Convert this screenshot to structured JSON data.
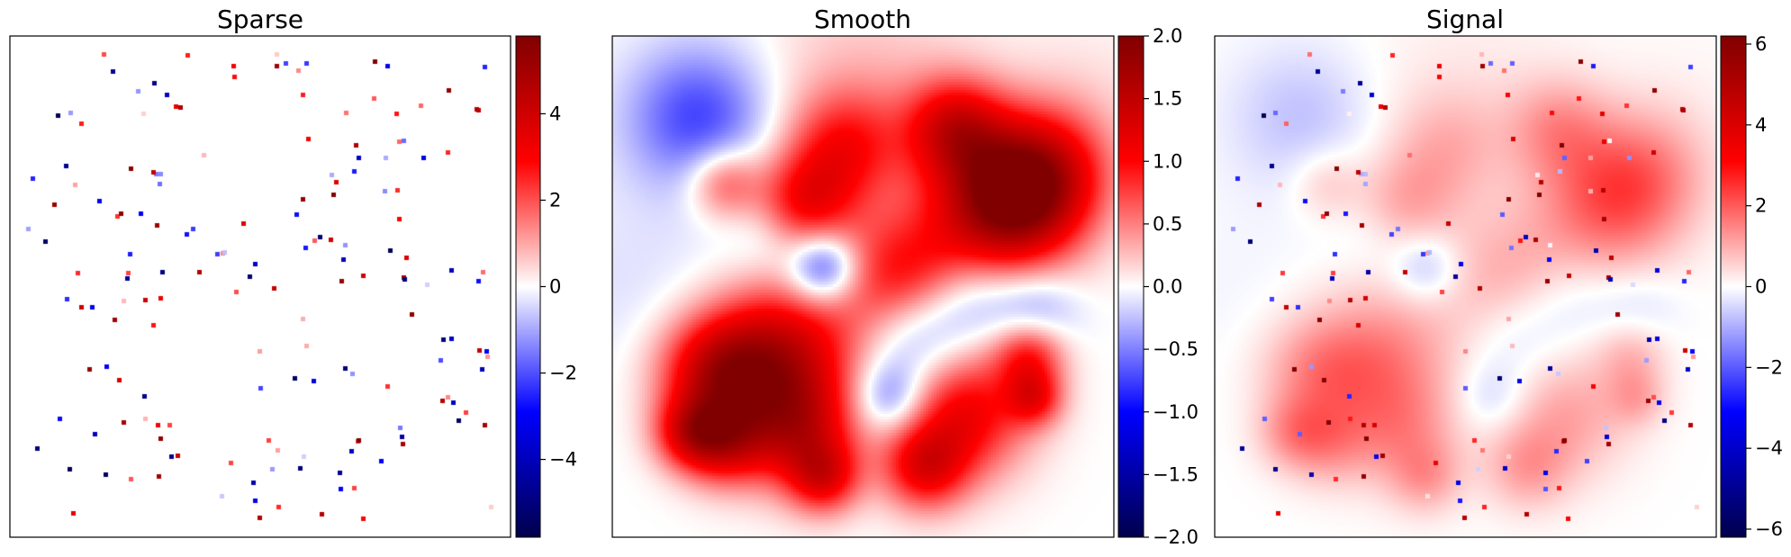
{
  "chart_data": [
    {
      "type": "heatmap",
      "title": "Sparse",
      "colormap": "seismic",
      "grid": false,
      "clim": [
        -5.8,
        5.8
      ],
      "colorbar_ticks": [
        -4,
        -2,
        0,
        2,
        4
      ],
      "colorbar_tick_labels": [
        "−4",
        "−2",
        "0",
        "2",
        "4"
      ],
      "field": "sparse-spikes"
    },
    {
      "type": "heatmap",
      "title": "Smooth",
      "colormap": "seismic",
      "grid": false,
      "clim": [
        -2.0,
        2.0
      ],
      "colorbar_ticks": [
        -2.0,
        -1.5,
        -1.0,
        -0.5,
        0.0,
        0.5,
        1.0,
        1.5,
        2.0
      ],
      "colorbar_tick_labels": [
        "−2.0",
        "−1.5",
        "−1.0",
        "−0.5",
        "0.0",
        "0.5",
        "1.0",
        "1.5",
        "2.0"
      ],
      "field": "smooth-blobs"
    },
    {
      "type": "heatmap",
      "title": "Signal",
      "colormap": "seismic",
      "grid": false,
      "clim": [
        -6.2,
        6.2
      ],
      "colorbar_ticks": [
        -6,
        -4,
        -2,
        0,
        2,
        4,
        6
      ],
      "colorbar_tick_labels": [
        "−6",
        "−4",
        "−2",
        "0",
        "2",
        "4",
        "6"
      ],
      "field": "smooth-blobs + sparse-spikes"
    }
  ]
}
